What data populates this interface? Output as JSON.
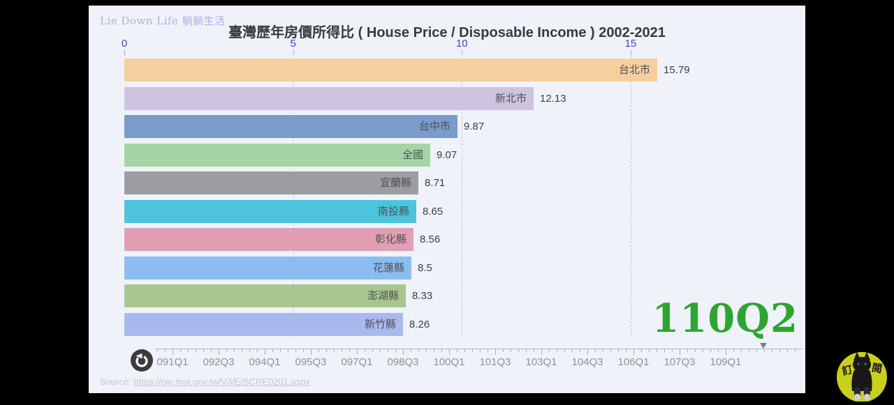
{
  "header": {
    "logo": "Lie Down Life 躺躺生活",
    "title": "臺灣歷年房價所得比 ( House Price / Disposable Income ) 2002-2021"
  },
  "chart_data": {
    "type": "bar",
    "orientation": "horizontal",
    "title": "臺灣歷年房價所得比 ( House Price / Disposable Income ) 2002-2021",
    "current_period": "110Q2",
    "x_axis": {
      "ticks": [
        0,
        5,
        10,
        15
      ],
      "gridline_ticks": [
        5,
        10,
        15
      ],
      "max_visible": 20.1
    },
    "bars": [
      {
        "name": "台北市",
        "value": 15.79,
        "display": "15.79",
        "color": "#f6cf9e"
      },
      {
        "name": "新北市",
        "value": 12.13,
        "display": "12.13",
        "color": "#cdc5e0"
      },
      {
        "name": "台中市",
        "value": 9.87,
        "display": "9.87",
        "color": "#7b9bca"
      },
      {
        "name": "全國",
        "value": 9.07,
        "display": "9.07",
        "color": "#a3d5a5"
      },
      {
        "name": "宜蘭縣",
        "value": 8.71,
        "display": "8.71",
        "color": "#9c9da1"
      },
      {
        "name": "南投縣",
        "value": 8.65,
        "display": "8.65",
        "color": "#4cc5dc"
      },
      {
        "name": "彰化縣",
        "value": 8.56,
        "display": "8.56",
        "color": "#e29fb3"
      },
      {
        "name": "花蓮縣",
        "value": 8.5,
        "display": "8.5",
        "color": "#8cbdf0"
      },
      {
        "name": "澎湖縣",
        "value": 8.33,
        "display": "8.33",
        "color": "#a8c78e"
      },
      {
        "name": "新竹縣",
        "value": 8.26,
        "display": "8.26",
        "color": "#a9b9ee"
      }
    ],
    "axis_color": "#4446b4",
    "period_color": "#2fa433"
  },
  "timeline": {
    "labels": [
      "091Q1",
      "092Q3",
      "094Q1",
      "095Q3",
      "097Q1",
      "098Q3",
      "100Q1",
      "101Q3",
      "103Q1",
      "104Q3",
      "106Q1",
      "107Q3",
      "109Q1"
    ],
    "current_position_label": "110Q2"
  },
  "footer": {
    "source_prefix": "Source: ",
    "source_link": "https://pip.moi.gov.tw/V3/E/SCRE0201.aspx"
  },
  "channel_logo": {
    "char_left": "訂",
    "char_right": "閱",
    "circle_color": "#c9cf1d"
  }
}
